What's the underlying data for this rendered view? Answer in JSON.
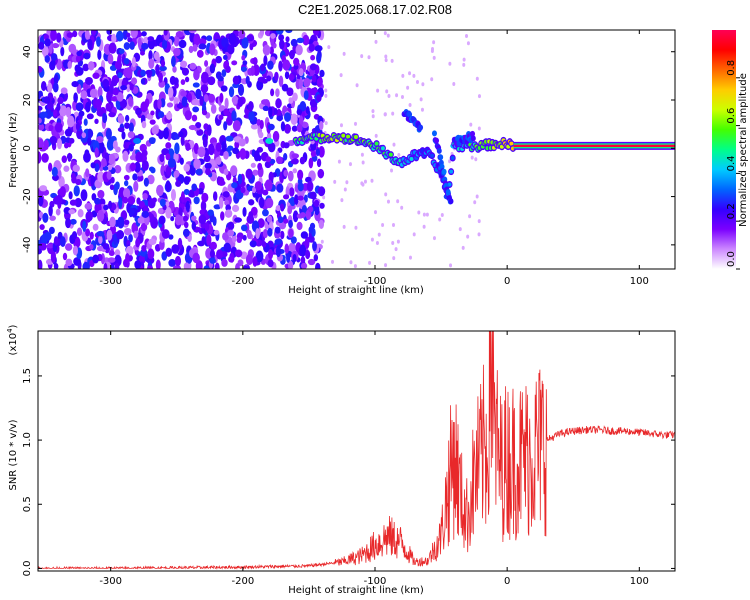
{
  "title": "C2E1.2025.068.17.02.R08",
  "colors": {
    "snr_line": "#e8282a",
    "frame": "#000000",
    "scatter_dots": "#8a2be2",
    "background": "#ffffff"
  },
  "chart_data": [
    {
      "type": "heatmap",
      "xlabel": "Height of straight line (km)",
      "ylabel": "Frequency (Hz)",
      "xlim": [
        -355,
        127
      ],
      "ylim": [
        -50,
        49
      ],
      "x_ticks": [
        -300,
        -200,
        -100,
        0,
        100
      ],
      "y_ticks": [
        -40,
        -20,
        0,
        20,
        40
      ],
      "colorbar": {
        "label": "Normalized spectral amplitude",
        "range": [
          0,
          1
        ],
        "ticks": [
          "0.0",
          "0.2",
          "0.4",
          "0.6",
          "0.8"
        ],
        "colormap": [
          "#ffffff",
          "#cc88ff",
          "#7b00ff",
          "#3300ff",
          "#0066ff",
          "#00ccff",
          "#00ff88",
          "#44ff00",
          "#ccff00",
          "#ffcc00",
          "#ff6600",
          "#ff0000",
          "#ff0055"
        ]
      },
      "ridge": [
        {
          "x": -280,
          "y": 3,
          "a": 0.35
        },
        {
          "x": -210,
          "y": 4,
          "a": 0.3
        },
        {
          "x": -180,
          "y": 3,
          "a": 0.45
        },
        {
          "x": -150,
          "y": 4,
          "a": 0.55
        },
        {
          "x": -130,
          "y": 5,
          "a": 0.6
        },
        {
          "x": -110,
          "y": 3,
          "a": 0.55
        },
        {
          "x": -100,
          "y": 1,
          "a": 0.5
        },
        {
          "x": -90,
          "y": -3,
          "a": 0.5
        },
        {
          "x": -80,
          "y": -6,
          "a": 0.45
        },
        {
          "x": -70,
          "y": -3,
          "a": 0.35
        },
        {
          "x": -60,
          "y": -2,
          "a": 0.35
        },
        {
          "x": -50,
          "y": -10,
          "a": 0.3
        },
        {
          "x": -45,
          "y": -20,
          "a": 0.3
        },
        {
          "x": -40,
          "y": 1,
          "a": 0.4
        },
        {
          "x": -20,
          "y": 1,
          "a": 0.55
        },
        {
          "x": -5,
          "y": 2,
          "a": 0.65
        },
        {
          "x": 10,
          "y": 1,
          "a": 0.85
        },
        {
          "x": 60,
          "y": 1,
          "a": 0.9
        },
        {
          "x": 127,
          "y": 1,
          "a": 0.95
        }
      ]
    },
    {
      "type": "line",
      "xlabel": "Height of straight line (km)",
      "ylabel": "SNR (10 * v/v)",
      "y_multiplier": "(x10^4)",
      "xlim": [
        -355,
        127
      ],
      "ylim": [
        -0.02,
        1.85
      ],
      "x_ticks": [
        -300,
        -200,
        -100,
        0,
        100
      ],
      "y_ticks": [
        "0.0",
        "0.5",
        "1.0",
        "1.5"
      ],
      "series": [
        {
          "x": [
            -355,
            -300,
            -200,
            -150,
            -125,
            -110,
            -100,
            -90,
            -80,
            -70,
            -60,
            -50,
            -45,
            -40,
            -35,
            -30,
            -25,
            -20,
            -15,
            -12,
            -10,
            -5,
            0,
            10,
            20,
            30,
            40,
            50,
            60,
            70,
            80,
            90,
            100,
            110,
            120,
            127
          ],
          "y": [
            0.0,
            0.0,
            0.01,
            0.02,
            0.05,
            0.1,
            0.18,
            0.25,
            0.2,
            0.05,
            0.06,
            0.25,
            0.6,
            0.9,
            0.55,
            0.4,
            0.7,
            0.85,
            1.0,
            1.82,
            1.05,
            0.8,
            0.85,
            0.85,
            0.9,
            1.0,
            1.05,
            1.07,
            1.08,
            1.08,
            1.07,
            1.07,
            1.06,
            1.05,
            1.04,
            1.04
          ]
        }
      ]
    }
  ]
}
